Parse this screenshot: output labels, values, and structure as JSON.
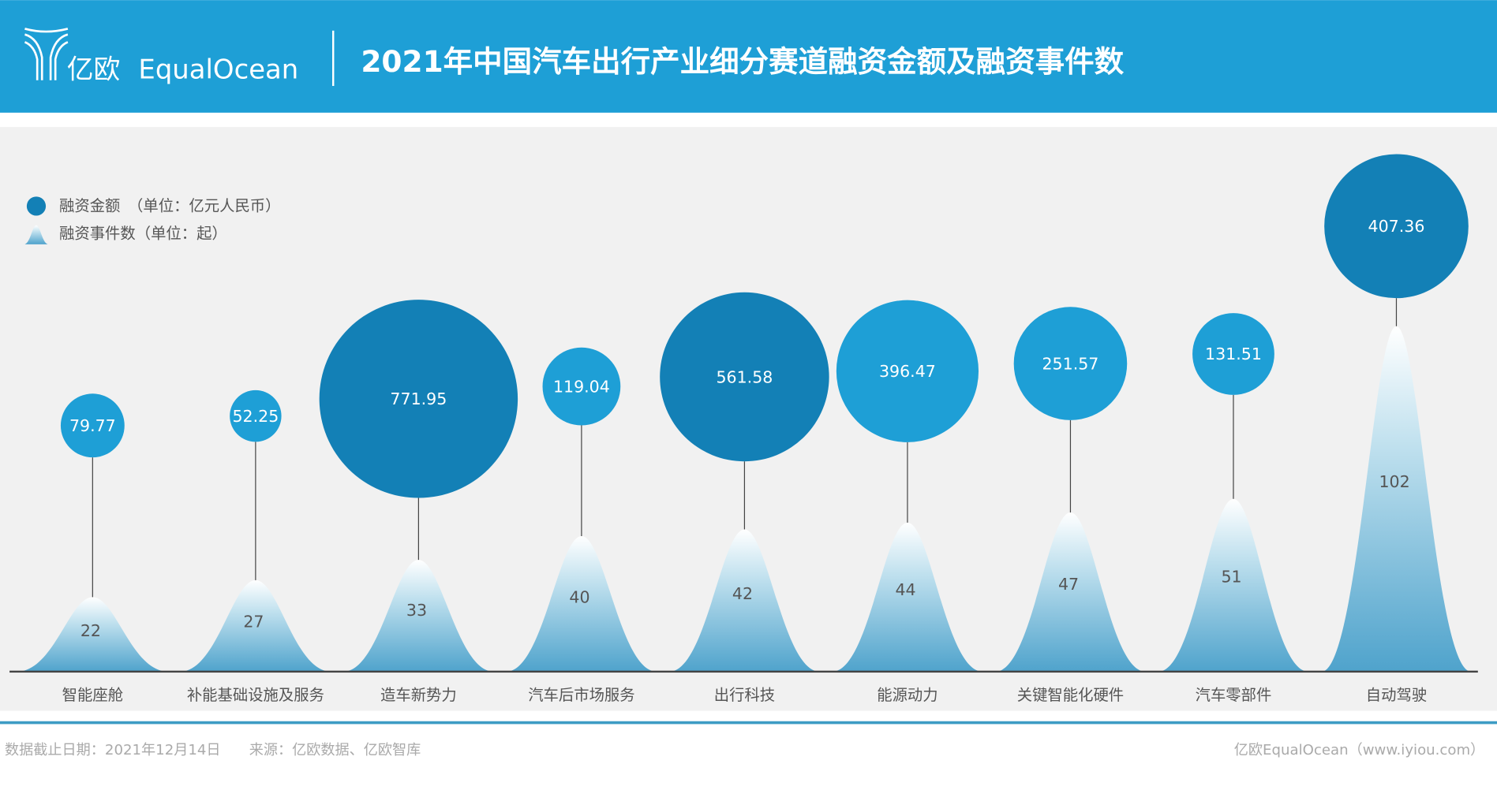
{
  "header": {
    "logo_cn": "亿欧",
    "logo_en": "EqualOcean",
    "title": "2021年中国汽车出行产业细分赛道融资金额及融资事件数"
  },
  "legend": {
    "amount": "融资金额　（单位：亿元人民币）",
    "count": "融资事件数（单位：起）"
  },
  "footer": {
    "left": "数据截止日期：2021年12月14日　　来源：亿欧数据、亿欧智库",
    "right": "亿欧EqualOcean（www.iyiou.com）"
  },
  "colors": {
    "header": "#1e9fd6",
    "bubble": "#1e9fd6",
    "bubble_dark": "#1380b6",
    "mountain": "#4fa3cc",
    "panel": "#f1f1f1"
  },
  "chart_data": {
    "type": "bubble+mountain",
    "categories": [
      "智能座舱",
      "补能基础设施及服务",
      "造车新势力",
      "汽车后市场服务",
      "出行科技",
      "能源动力",
      "关键智能化硬件",
      "汽车零部件",
      "自动驾驶"
    ],
    "series": [
      {
        "name": "融资金额",
        "unit": "亿元人民币",
        "values": [
          79.77,
          52.25,
          771.95,
          119.04,
          561.58,
          396.47,
          251.57,
          131.51,
          407.36
        ]
      },
      {
        "name": "融资事件数",
        "unit": "起",
        "values": [
          22,
          27,
          33,
          40,
          42,
          44,
          47,
          51,
          102
        ]
      }
    ]
  }
}
